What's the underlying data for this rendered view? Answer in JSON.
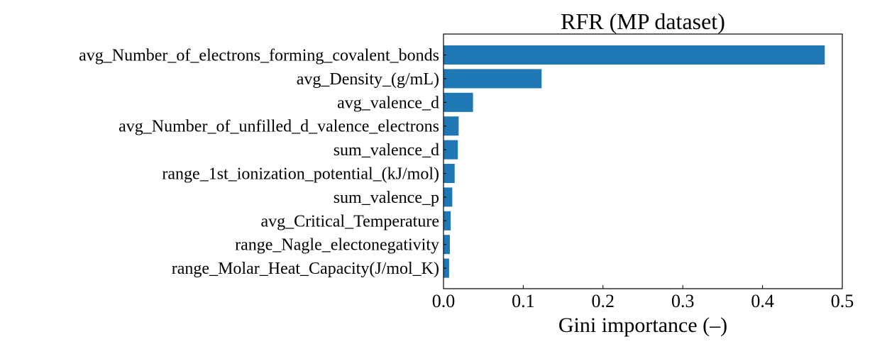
{
  "chart_data": {
    "type": "bar",
    "orientation": "horizontal",
    "title": "RFR (MP dataset)",
    "xlabel": "Gini importance (–)",
    "ylabel": "",
    "xlim": [
      0,
      0.5
    ],
    "xticks": [
      "0.0",
      "0.1",
      "0.2",
      "0.3",
      "0.4",
      "0.5"
    ],
    "grid": false,
    "categories": [
      "avg_Number_of_electrons_forming_covalent_bonds",
      "avg_Density_(g/mL)",
      "avg_valence_d",
      "avg_Number_of_unfilled_d_valence_electrons",
      "sum_valence_d",
      "range_1st_ionization_potential_(kJ/mol)",
      "sum_valence_p",
      "avg_Critical_Temperature",
      "range_Nagle_electonegativity",
      "range_Molar_Heat_Capacity(J/mol_K)"
    ],
    "values": [
      0.478,
      0.123,
      0.037,
      0.019,
      0.018,
      0.014,
      0.011,
      0.009,
      0.008,
      0.007
    ],
    "bar_color": "#1f77b4"
  }
}
